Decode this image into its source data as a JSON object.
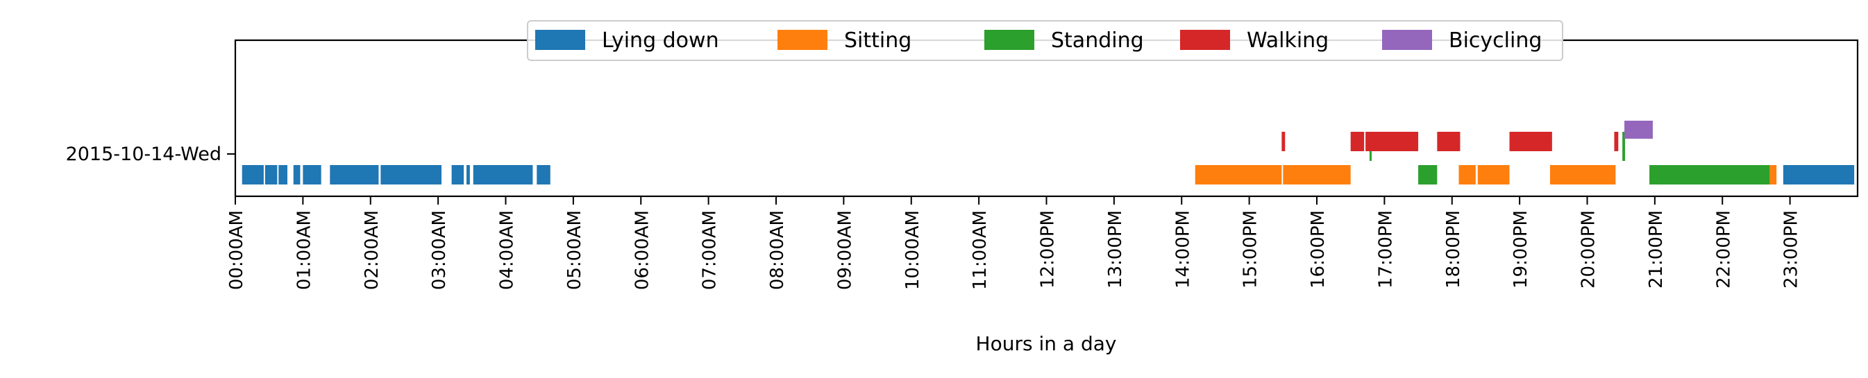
{
  "chart_data": {
    "type": "timeline",
    "title": "",
    "xlabel": "Hours in a day",
    "ylabel": "",
    "xlim": [
      0,
      24
    ],
    "x_ticks": [
      "00:00AM",
      "01:00AM",
      "02:00AM",
      "03:00AM",
      "04:00AM",
      "05:00AM",
      "06:00AM",
      "07:00AM",
      "08:00AM",
      "09:00AM",
      "10:00AM",
      "11:00AM",
      "12:00PM",
      "13:00PM",
      "14:00PM",
      "15:00PM",
      "16:00PM",
      "17:00PM",
      "18:00PM",
      "19:00PM",
      "20:00PM",
      "21:00PM",
      "22:00PM",
      "23:00PM"
    ],
    "y_categories": [
      "2015-10-14-Wed"
    ],
    "grid": false,
    "legend_position": "top-center",
    "series": [
      {
        "name": "Lying down",
        "color": "#1f77b4",
        "level": "low",
        "intervals": [
          [
            0.1,
            0.42
          ],
          [
            0.44,
            0.62
          ],
          [
            0.64,
            0.77
          ],
          [
            0.86,
            0.96
          ],
          [
            1.0,
            1.27
          ],
          [
            1.4,
            2.12
          ],
          [
            2.15,
            3.05
          ],
          [
            3.2,
            3.38
          ],
          [
            3.42,
            3.47
          ],
          [
            3.52,
            4.4
          ],
          [
            4.46,
            4.66
          ],
          [
            22.9,
            23.95
          ]
        ]
      },
      {
        "name": "Sitting",
        "color": "#ff7f0e",
        "level": "low",
        "intervals": [
          [
            14.2,
            15.48
          ],
          [
            15.5,
            16.5
          ],
          [
            18.1,
            18.35
          ],
          [
            18.38,
            18.85
          ],
          [
            19.45,
            20.42
          ],
          [
            22.7,
            22.8
          ]
        ]
      },
      {
        "name": "Standing",
        "color": "#2ca02c",
        "level": "mixed",
        "intervals": [
          [
            16.78,
            16.81,
            "mid"
          ],
          [
            17.5,
            17.78,
            "low"
          ],
          [
            20.52,
            20.56,
            "mid"
          ],
          [
            20.92,
            22.7,
            "low"
          ]
        ]
      },
      {
        "name": "Walking",
        "color": "#d62728",
        "level": "mid",
        "intervals": [
          [
            15.48,
            15.53
          ],
          [
            16.5,
            16.7
          ],
          [
            16.72,
            17.5
          ],
          [
            17.78,
            18.12
          ],
          [
            18.85,
            19.48
          ],
          [
            20.4,
            20.46
          ]
        ]
      },
      {
        "name": "Bicycling",
        "color": "#9467bd",
        "level": "high",
        "intervals": [
          [
            20.55,
            20.97
          ]
        ]
      }
    ]
  }
}
